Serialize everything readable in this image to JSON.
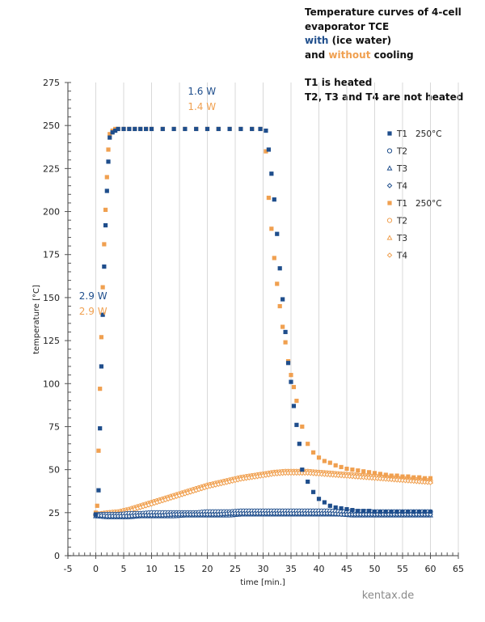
{
  "title": {
    "line1": "Temperature curves of 4-cell",
    "line2": "evaporator TCE",
    "line3_colored": "with",
    "line3_rest": " (ice water)",
    "line4_start": "and ",
    "line4_colored": "without",
    "line4_rest": " cooling",
    "line5": "T1 is heated",
    "line6": "T2, T3 and T4 are not heated"
  },
  "colors": {
    "with_cooling": "#1f4e8c",
    "without_cooling": "#f0a050",
    "grid": "#d9d9d9",
    "axis": "#7f7f7f"
  },
  "watermark": "kentax.de",
  "chart_data": {
    "type": "scatter",
    "title": "Temperature curves of 4-cell evaporator TCE with (ice water) and without cooling",
    "xlabel": "time [min.]",
    "ylabel": "temperature [°C]",
    "xlim": [
      -5,
      65
    ],
    "ylim": [
      0,
      275
    ],
    "x_ticks": [
      -5,
      0,
      5,
      10,
      15,
      20,
      25,
      30,
      35,
      40,
      45,
      50,
      55,
      60,
      65
    ],
    "y_ticks": [
      0,
      25,
      50,
      75,
      100,
      125,
      150,
      175,
      200,
      225,
      250,
      275
    ],
    "grid": "vertical",
    "legend_position": "right",
    "annotations": [
      {
        "text": "1.6 W",
        "x": 16.5,
        "y": 268,
        "series_group": "with_cooling"
      },
      {
        "text": "1.4 W",
        "x": 16.5,
        "y": 259,
        "series_group": "without_cooling"
      },
      {
        "text": "2.9 W",
        "x": -3,
        "y": 149,
        "series_group": "with_cooling"
      },
      {
        "text": "2.9 W",
        "x": -3,
        "y": 140,
        "series_group": "without_cooling"
      }
    ],
    "series": [
      {
        "name": "T1  250°C",
        "group": "with_cooling",
        "marker": "square-filled",
        "x": [
          0,
          0.5,
          0.75,
          1,
          1.25,
          1.5,
          1.75,
          2,
          2.25,
          2.5,
          3,
          3.5,
          4,
          5,
          6,
          7,
          8,
          9,
          10,
          12,
          14,
          16,
          18,
          20,
          22,
          24,
          26,
          28,
          29.5,
          30.5,
          31,
          31.5,
          32,
          32.5,
          33,
          33.5,
          34,
          34.5,
          35,
          35.5,
          36,
          36.5,
          37,
          38,
          39,
          40,
          41,
          42,
          43,
          44,
          45,
          46,
          47,
          48,
          49,
          50,
          51,
          52,
          53,
          54,
          55,
          56,
          57,
          58,
          59,
          60
        ],
        "y": [
          24,
          38,
          74,
          110,
          140,
          168,
          192,
          212,
          229,
          243,
          246,
          247,
          248,
          248,
          248,
          248,
          248,
          248,
          248,
          248,
          248,
          248,
          248,
          248,
          248,
          248,
          248,
          248,
          248,
          247,
          236,
          222,
          207,
          187,
          167,
          149,
          130,
          112,
          101,
          87,
          76,
          65,
          50,
          43,
          37,
          33,
          31,
          29,
          28,
          27.5,
          27,
          26.5,
          26,
          26,
          26,
          25.5,
          25.5,
          25.5,
          25.5,
          25.5,
          25.5,
          25.5,
          25.5,
          25.5,
          25.5,
          25.5
        ]
      },
      {
        "name": "T2",
        "group": "with_cooling",
        "marker": "circle-open",
        "x": [
          0,
          2,
          4,
          6,
          8,
          10,
          12,
          14,
          16,
          18,
          20,
          22,
          24,
          26,
          28,
          30,
          32,
          34,
          36,
          38,
          40,
          42,
          44,
          46,
          48,
          50,
          52,
          54,
          56,
          58,
          60
        ],
        "y": [
          24,
          24,
          24,
          24.5,
          24.5,
          25,
          25,
          25,
          25,
          25,
          25.5,
          25.5,
          25.5,
          26,
          26,
          26,
          26,
          26,
          26,
          26,
          26,
          26,
          25.5,
          25.5,
          25.5,
          25.5,
          25.5,
          25.5,
          25.5,
          25.5,
          25.5
        ]
      },
      {
        "name": "T3",
        "group": "with_cooling",
        "marker": "triangle-open",
        "x": [
          0,
          2,
          4,
          6,
          8,
          10,
          12,
          14,
          16,
          18,
          20,
          22,
          24,
          26,
          28,
          30,
          32,
          34,
          36,
          38,
          40,
          42,
          44,
          46,
          48,
          50,
          52,
          54,
          56,
          58,
          60
        ],
        "y": [
          23,
          22.5,
          22.5,
          22.5,
          23,
          23,
          23,
          23,
          23.5,
          23.5,
          23.5,
          23.5,
          23.5,
          24,
          24,
          24,
          24,
          24,
          24,
          24,
          24,
          24,
          24,
          23.5,
          23.5,
          23.5,
          23.5,
          23.5,
          23.5,
          23.5,
          23.5
        ]
      },
      {
        "name": "T4",
        "group": "with_cooling",
        "marker": "diamond-open",
        "x": [
          0,
          2,
          4,
          6,
          8,
          10,
          12,
          14,
          16,
          18,
          20,
          22,
          24,
          26,
          28,
          30,
          32,
          34,
          36,
          38,
          40,
          42,
          44,
          46,
          48,
          50,
          52,
          54,
          56,
          58,
          60
        ],
        "y": [
          23.5,
          23,
          23,
          23,
          23.5,
          23.5,
          23.5,
          24,
          24,
          24,
          24,
          24,
          24.5,
          24.5,
          24.5,
          24.5,
          24.5,
          24.5,
          24.5,
          24.5,
          24.5,
          24.5,
          24,
          24,
          24,
          24,
          24,
          24,
          24,
          24,
          24
        ]
      },
      {
        "name": "T1  250°C",
        "group": "without_cooling",
        "marker": "square-filled",
        "x": [
          0,
          0.25,
          0.5,
          0.75,
          1,
          1.25,
          1.5,
          1.75,
          2,
          2.25,
          2.5,
          3,
          3.5,
          4,
          5,
          6,
          7,
          8,
          9,
          10,
          12,
          14,
          16,
          18,
          20,
          22,
          24,
          26,
          28,
          29.5,
          30.5,
          31,
          31.5,
          32,
          32.5,
          33,
          33.5,
          34,
          34.5,
          35,
          35.5,
          36,
          37,
          38,
          39,
          40,
          41,
          42,
          43,
          44,
          45,
          46,
          47,
          48,
          49,
          50,
          51,
          52,
          53,
          54,
          55,
          56,
          57,
          58,
          59,
          60
        ],
        "y": [
          25,
          29,
          61,
          97,
          127,
          156,
          181,
          201,
          220,
          236,
          245,
          247,
          248,
          248,
          248,
          248,
          248,
          248,
          248,
          248,
          248,
          248,
          248,
          248,
          248,
          248,
          248,
          248,
          248,
          248,
          235,
          208,
          190,
          173,
          158,
          145,
          133,
          124,
          113,
          105,
          98,
          90,
          75,
          65,
          60,
          57,
          55,
          54,
          52.5,
          51.5,
          50.5,
          50,
          49.5,
          49,
          48.5,
          48,
          47.5,
          47,
          46.5,
          46.5,
          46,
          46,
          45.5,
          45.5,
          45,
          45
        ]
      },
      {
        "name": "T2",
        "group": "without_cooling",
        "marker": "circle-open",
        "x": [
          0,
          2,
          4,
          6,
          8,
          10,
          12,
          14,
          16,
          18,
          20,
          22,
          24,
          26,
          28,
          30,
          32,
          34,
          36,
          38,
          40,
          42,
          44,
          46,
          48,
          50,
          52,
          54,
          56,
          58,
          60
        ],
        "y": [
          24,
          25,
          25.5,
          27,
          29,
          31,
          33,
          35,
          37,
          39,
          41,
          42.5,
          44,
          45.5,
          46.5,
          47.5,
          48.5,
          49,
          49,
          49,
          48.5,
          48,
          47.5,
          47,
          46.5,
          46,
          45.5,
          45,
          44.5,
          44,
          43.5
        ]
      },
      {
        "name": "T3",
        "group": "without_cooling",
        "marker": "triangle-open",
        "x": [
          0,
          2,
          4,
          6,
          8,
          10,
          12,
          14,
          16,
          18,
          20,
          22,
          24,
          26,
          28,
          30,
          32,
          34,
          36,
          38,
          40,
          42,
          44,
          46,
          48,
          50,
          52,
          54,
          56,
          58,
          60
        ],
        "y": [
          24,
          24.5,
          25,
          26.5,
          28.5,
          30.5,
          32.5,
          34.5,
          36.5,
          38.5,
          40.5,
          42,
          43.5,
          45,
          46,
          47,
          48,
          48.5,
          48.5,
          48.5,
          48,
          47.5,
          47,
          46.5,
          46,
          45.5,
          45,
          44.5,
          44,
          43.5,
          43
        ]
      },
      {
        "name": "T4",
        "group": "without_cooling",
        "marker": "diamond-open",
        "x": [
          0,
          2,
          4,
          6,
          8,
          10,
          12,
          14,
          16,
          18,
          20,
          22,
          24,
          26,
          28,
          30,
          32,
          34,
          36,
          38,
          40,
          42,
          44,
          46,
          48,
          50,
          52,
          54,
          56,
          58,
          60
        ],
        "y": [
          23.5,
          24,
          24.5,
          26,
          28,
          30,
          32,
          34,
          36,
          38,
          40,
          41.5,
          43,
          44.5,
          45.5,
          46.5,
          47.5,
          48,
          48,
          48,
          47.5,
          47,
          46.5,
          46,
          45.5,
          45,
          44.5,
          44,
          43.5,
          43,
          42.5
        ]
      }
    ]
  }
}
